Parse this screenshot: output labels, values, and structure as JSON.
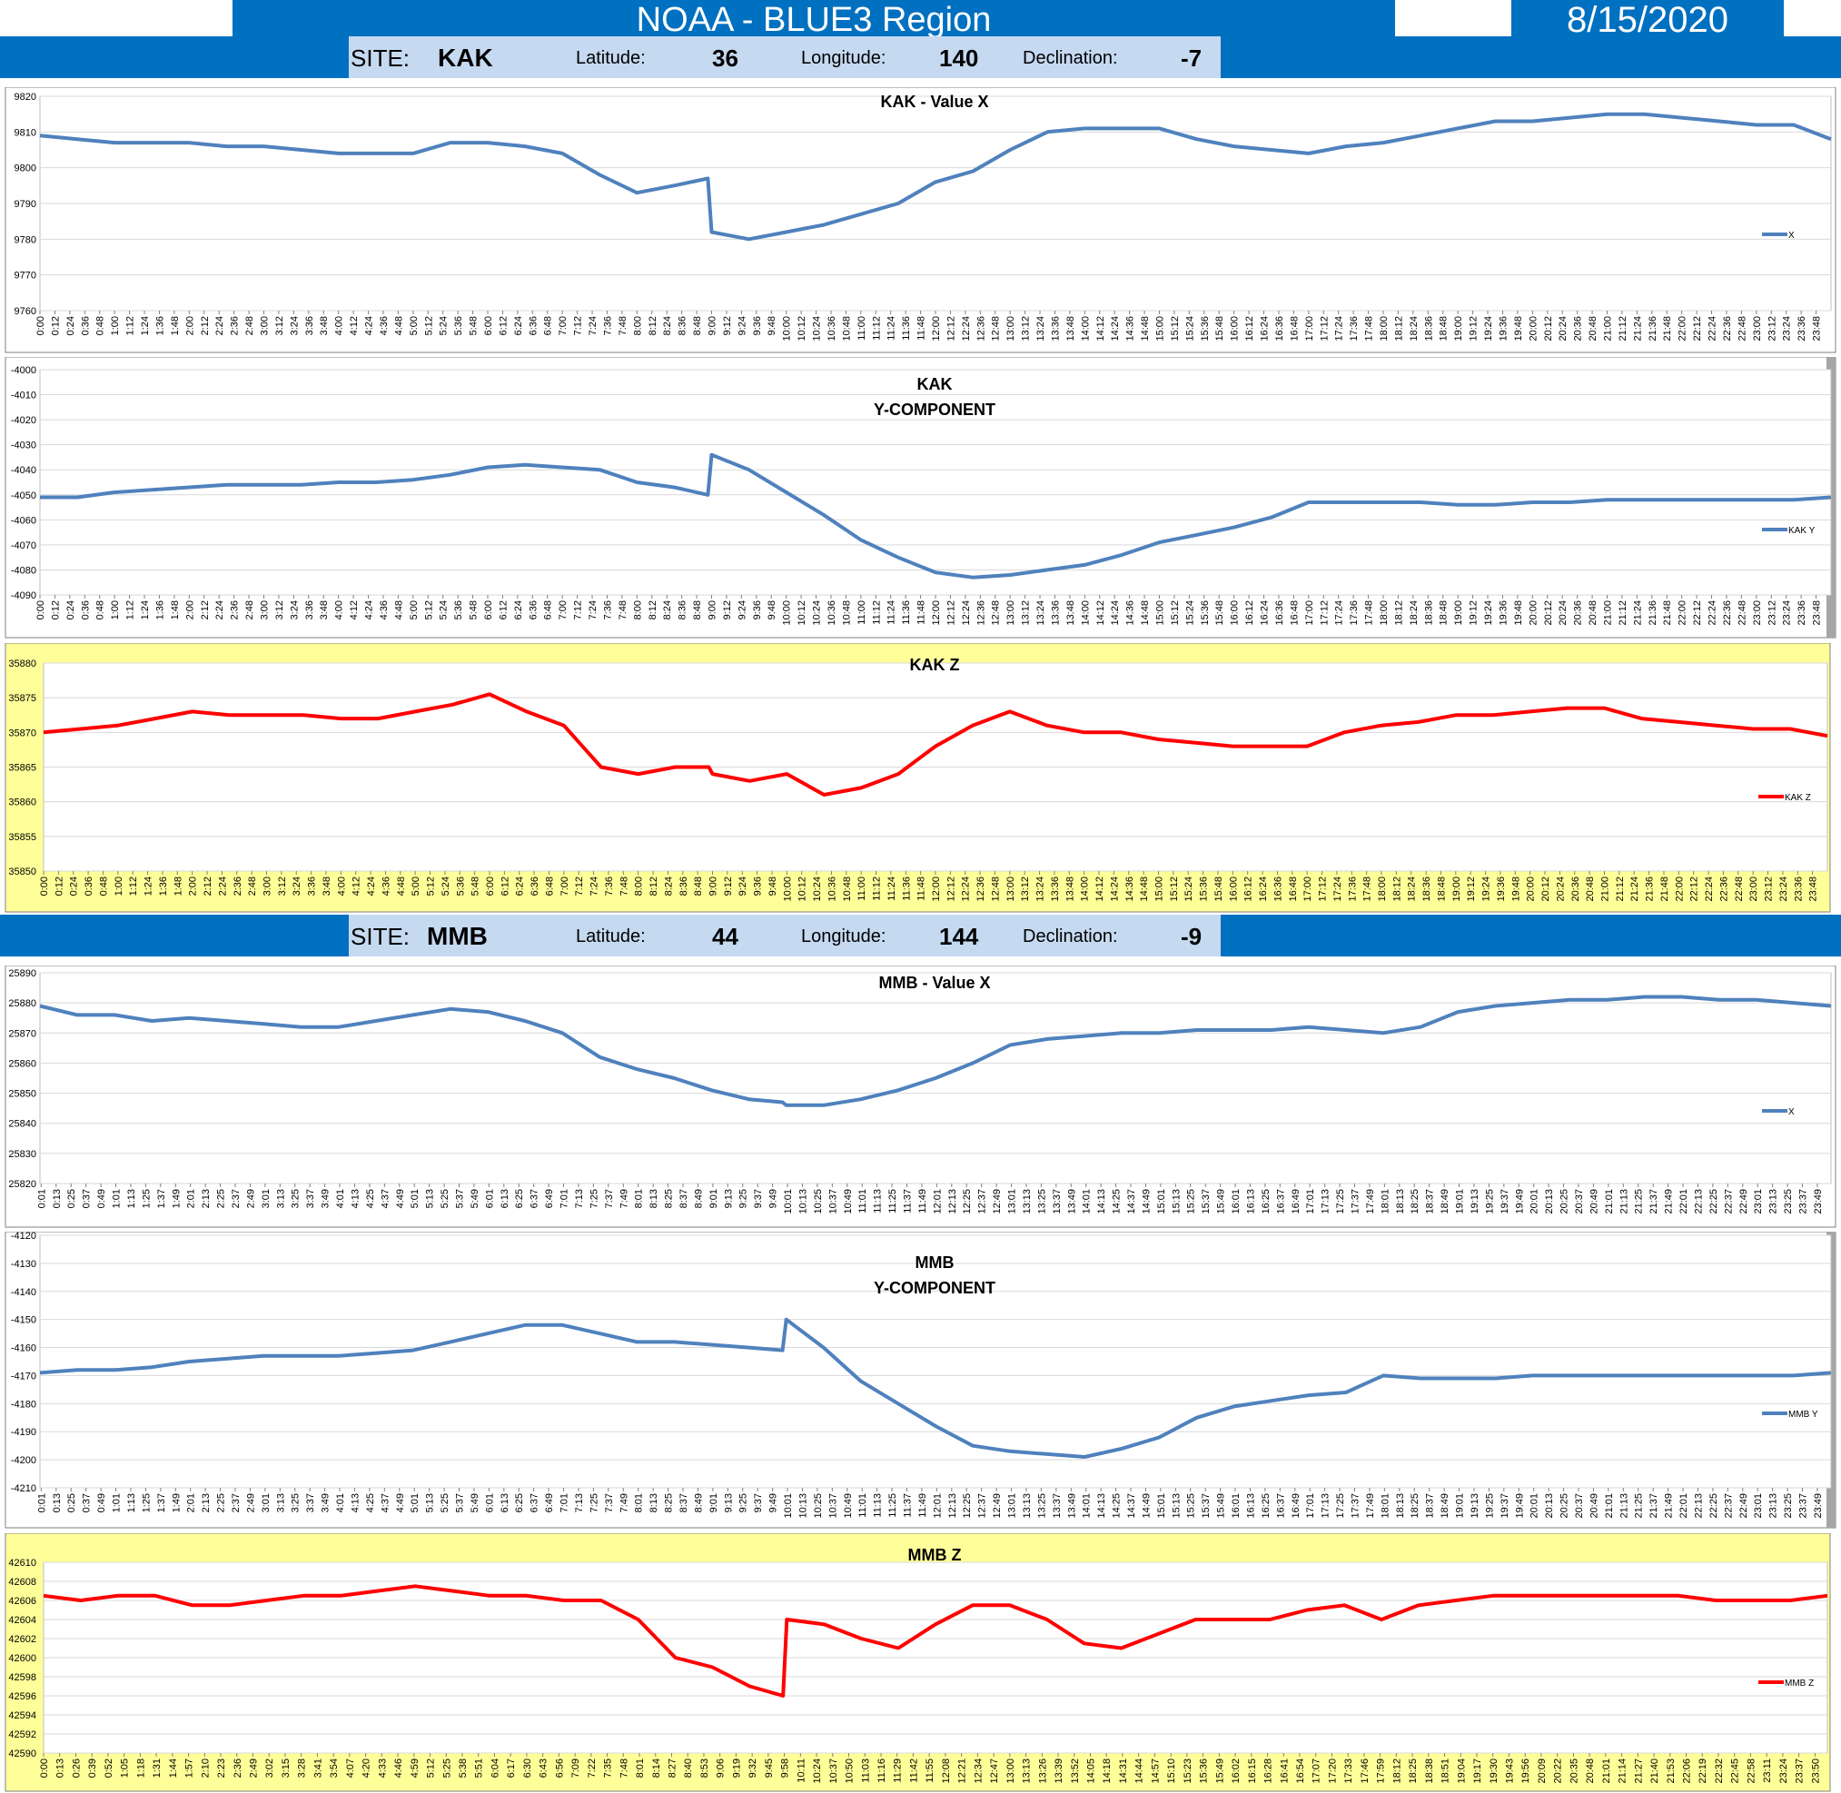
{
  "header": {
    "title": "NOAA - BLUE3 Region",
    "date": "8/15/2020"
  },
  "sites": [
    {
      "site_label": "SITE:",
      "code": "KAK",
      "lat_label": "Latitude:",
      "lat": "36",
      "lon_label": "Longitude:",
      "lon": "140",
      "dec_label": "Declination:",
      "dec": "-7"
    },
    {
      "site_label": "SITE:",
      "code": "MMB",
      "lat_label": "Latitude:",
      "lat": "44",
      "lon_label": "Longitude:",
      "lon": "144",
      "dec_label": "Declination:",
      "dec": "-9"
    }
  ],
  "chart_data": [
    {
      "type": "line",
      "title": "KAK - Value X",
      "ylim": [
        9760,
        9820
      ],
      "yticks": [
        9760,
        9770,
        9780,
        9790,
        9800,
        9810,
        9820
      ],
      "tick_start": 0,
      "tick_step": 12,
      "series": [
        {
          "name": "X",
          "color": "#4f81bd",
          "x": [
            0,
            0.5,
            1,
            1.5,
            2,
            2.5,
            3,
            3.5,
            4,
            4.5,
            5,
            5.5,
            6,
            6.5,
            7,
            7.5,
            8,
            8.5,
            8.95,
            9,
            9.5,
            10,
            10.5,
            11,
            11.5,
            12,
            12.5,
            13,
            13.5,
            14,
            14.5,
            15,
            15.5,
            16,
            16.5,
            17,
            17.5,
            18,
            18.5,
            19,
            19.5,
            20,
            20.5,
            21,
            21.5,
            22,
            22.5,
            23,
            23.5,
            24
          ],
          "values": [
            9809,
            9808,
            9807,
            9807,
            9807,
            9806,
            9806,
            9805,
            9804,
            9804,
            9804,
            9807,
            9807,
            9806,
            9804,
            9798,
            9793,
            9795,
            9797,
            9782,
            9780,
            9782,
            9784,
            9787,
            9790,
            9796,
            9799,
            9805,
            9810,
            9811,
            9811,
            9811,
            9808,
            9806,
            9805,
            9804,
            9806,
            9807,
            9809,
            9811,
            9813,
            9813,
            9814,
            9815,
            9815,
            9814,
            9813,
            9812,
            9812,
            9808
          ]
        }
      ]
    },
    {
      "type": "line",
      "title": "KAK\nY-COMPONENT",
      "ylim": [
        -4090,
        -4000
      ],
      "yticks": [
        -4000,
        -4010,
        -4020,
        -4030,
        -4040,
        -4050,
        -4060,
        -4070,
        -4080,
        -4090
      ],
      "tick_start": 0,
      "tick_step": 12,
      "series": [
        {
          "name": "KAK Y",
          "color": "#4f81bd",
          "x": [
            0,
            0.5,
            1,
            1.5,
            2,
            2.5,
            3,
            3.5,
            4,
            4.5,
            5,
            5.5,
            6,
            6.5,
            7,
            7.5,
            8,
            8.5,
            8.95,
            9,
            9.5,
            10,
            10.5,
            11,
            11.5,
            12,
            12.5,
            13,
            13.5,
            14,
            14.5,
            15,
            15.5,
            16,
            16.5,
            17,
            17.5,
            18,
            18.5,
            19,
            19.5,
            20,
            20.5,
            21,
            21.5,
            22,
            22.5,
            23,
            23.5,
            24
          ],
          "values": [
            -4051,
            -4051,
            -4049,
            -4048,
            -4047,
            -4046,
            -4046,
            -4046,
            -4045,
            -4045,
            -4044,
            -4042,
            -4039,
            -4038,
            -4039,
            -4040,
            -4045,
            -4047,
            -4050,
            -4034,
            -4040,
            -4049,
            -4058,
            -4068,
            -4075,
            -4081,
            -4083,
            -4082,
            -4080,
            -4078,
            -4074,
            -4069,
            -4066,
            -4063,
            -4059,
            -4053,
            -4053,
            -4053,
            -4053,
            -4054,
            -4054,
            -4053,
            -4053,
            -4052,
            -4052,
            -4052,
            -4052,
            -4052,
            -4052,
            -4051
          ]
        }
      ]
    },
    {
      "type": "line",
      "title": "KAK Z",
      "ylim": [
        35850,
        35880
      ],
      "yticks": [
        35850,
        35855,
        35860,
        35865,
        35870,
        35875,
        35880
      ],
      "tick_start": 0,
      "tick_step": 12,
      "series": [
        {
          "name": "KAK Z",
          "color": "#ff0000",
          "x": [
            0,
            0.5,
            1,
            1.5,
            2,
            2.5,
            3,
            3.5,
            4,
            4.5,
            5,
            5.5,
            6,
            6.5,
            7,
            7.5,
            8,
            8.5,
            8.95,
            9,
            9.5,
            10,
            10.5,
            11,
            11.5,
            12,
            12.5,
            13,
            13.5,
            14,
            14.5,
            15,
            15.5,
            16,
            16.5,
            17,
            17.5,
            18,
            18.5,
            19,
            19.5,
            20,
            20.5,
            21,
            21.5,
            22,
            22.5,
            23,
            23.5,
            24
          ],
          "values": [
            35870,
            35870.5,
            35871,
            35872,
            35873,
            35872.5,
            35872.5,
            35872.5,
            35872,
            35872,
            35873,
            35874,
            35875.5,
            35873,
            35871,
            35865,
            35864,
            35865,
            35865,
            35864,
            35863,
            35864,
            35861,
            35862,
            35864,
            35868,
            35871,
            35873,
            35871,
            35870,
            35870,
            35869,
            35868.5,
            35868,
            35868,
            35868,
            35870,
            35871,
            35871.5,
            35872.5,
            35872.5,
            35873,
            35873.5,
            35873.5,
            35872,
            35871.5,
            35871,
            35870.5,
            35870.5,
            35869.5
          ]
        }
      ]
    },
    {
      "type": "line",
      "title": "MMB - Value X",
      "ylim": [
        25820,
        25890
      ],
      "yticks": [
        25820,
        25830,
        25840,
        25850,
        25860,
        25870,
        25880,
        25890
      ],
      "tick_start": 1,
      "tick_step": 12,
      "series": [
        {
          "name": "X",
          "color": "#4f81bd",
          "x": [
            0,
            0.5,
            1,
            1.5,
            2,
            2.5,
            3,
            3.5,
            4,
            4.5,
            5,
            5.5,
            6,
            6.5,
            7,
            7.5,
            8,
            8.5,
            9,
            9.5,
            9.95,
            10,
            10.5,
            11,
            11.5,
            12,
            12.5,
            13,
            13.5,
            14,
            14.5,
            15,
            15.5,
            16,
            16.5,
            17,
            17.5,
            18,
            18.5,
            19,
            19.5,
            20,
            20.5,
            21,
            21.5,
            22,
            22.5,
            23,
            23.5,
            24
          ],
          "values": [
            25879,
            25876,
            25876,
            25874,
            25875,
            25874,
            25873,
            25872,
            25872,
            25874,
            25876,
            25878,
            25877,
            25874,
            25870,
            25862,
            25858,
            25855,
            25851,
            25848,
            25847,
            25846,
            25846,
            25848,
            25851,
            25855,
            25860,
            25866,
            25868,
            25869,
            25870,
            25870,
            25871,
            25871,
            25871,
            25872,
            25871,
            25870,
            25872,
            25877,
            25879,
            25880,
            25881,
            25881,
            25882,
            25882,
            25881,
            25881,
            25880,
            25879
          ]
        }
      ]
    },
    {
      "type": "line",
      "title": "MMB\nY-COMPONENT",
      "ylim": [
        -4210,
        -4120
      ],
      "yticks": [
        -4120,
        -4130,
        -4140,
        -4150,
        -4160,
        -4170,
        -4180,
        -4190,
        -4200,
        -4210
      ],
      "tick_start": 1,
      "tick_step": 12,
      "series": [
        {
          "name": "MMB Y",
          "color": "#4f81bd",
          "x": [
            0,
            0.5,
            1,
            1.5,
            2,
            2.5,
            3,
            3.5,
            4,
            4.5,
            5,
            5.5,
            6,
            6.5,
            7,
            7.5,
            8,
            8.5,
            9,
            9.5,
            9.95,
            10,
            10.5,
            11,
            11.5,
            12,
            12.5,
            13,
            13.5,
            14,
            14.5,
            15,
            15.5,
            16,
            16.5,
            17,
            17.5,
            18,
            18.5,
            19,
            19.5,
            20,
            20.5,
            21,
            21.5,
            22,
            22.5,
            23,
            23.5,
            24
          ],
          "values": [
            -4169,
            -4168,
            -4168,
            -4167,
            -4165,
            -4164,
            -4163,
            -4163,
            -4163,
            -4162,
            -4161,
            -4158,
            -4155,
            -4152,
            -4152,
            -4155,
            -4158,
            -4158,
            -4159,
            -4160,
            -4161,
            -4150,
            -4160,
            -4172,
            -4180,
            -4188,
            -4195,
            -4197,
            -4198,
            -4199,
            -4196,
            -4192,
            -4185,
            -4181,
            -4179,
            -4177,
            -4176,
            -4170,
            -4171,
            -4171,
            -4171,
            -4170,
            -4170,
            -4170,
            -4170,
            -4170,
            -4170,
            -4170,
            -4170,
            -4169
          ]
        }
      ]
    },
    {
      "type": "line",
      "title": "MMB Z",
      "ylim": [
        42590,
        42610
      ],
      "yticks": [
        42590,
        42592,
        42594,
        42596,
        42598,
        42600,
        42602,
        42604,
        42606,
        42608,
        42610
      ],
      "tick_start": 0,
      "tick_step": 13,
      "series": [
        {
          "name": "MMB Z",
          "color": "#ff0000",
          "x": [
            0,
            0.5,
            1,
            1.5,
            2,
            2.5,
            3,
            3.5,
            4,
            4.5,
            5,
            5.5,
            6,
            6.5,
            7,
            7.5,
            8,
            8.5,
            9,
            9.5,
            9.95,
            10,
            10.5,
            11,
            11.5,
            12,
            12.5,
            13,
            13.5,
            14,
            14.5,
            15,
            15.5,
            16,
            16.5,
            17,
            17.5,
            18,
            18.5,
            19,
            19.5,
            20,
            20.5,
            21,
            21.5,
            22,
            22.5,
            23,
            23.5,
            24
          ],
          "values": [
            42606.5,
            42606,
            42606.5,
            42606.5,
            42605.5,
            42605.5,
            42606,
            42606.5,
            42606.5,
            42607,
            42607.5,
            42607,
            42606.5,
            42606.5,
            42606,
            42606,
            42604,
            42600,
            42599,
            42597,
            42596,
            42604,
            42603.5,
            42602,
            42601,
            42603.5,
            42605.5,
            42605.5,
            42604,
            42601.5,
            42601,
            42602.5,
            42604,
            42604,
            42604,
            42605,
            42605.5,
            42604,
            42605.5,
            42606,
            42606.5,
            42606.5,
            42606.5,
            42606.5,
            42606.5,
            42606.5,
            42606,
            42606,
            42606,
            42606.5
          ]
        }
      ]
    }
  ]
}
